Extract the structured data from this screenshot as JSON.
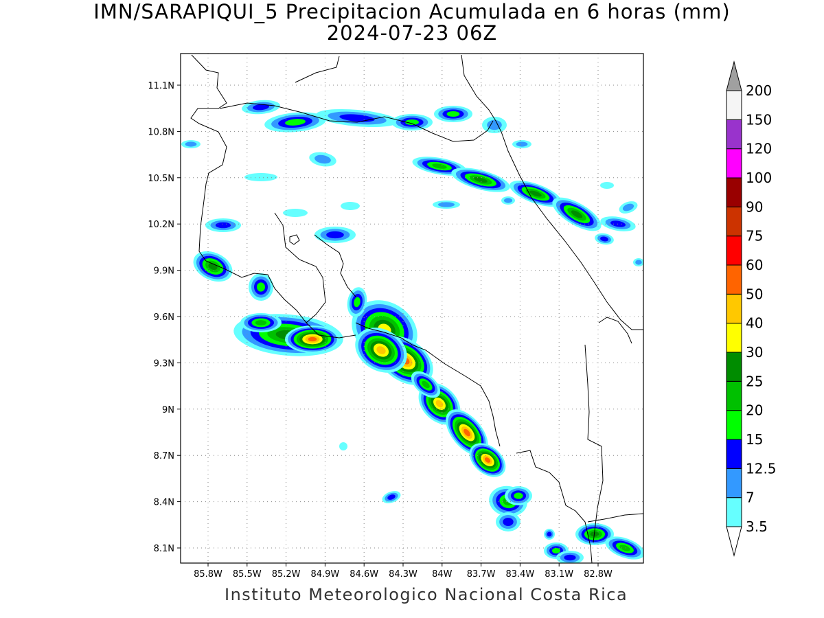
{
  "title": {
    "line1": "IMN/SARAPIQUI_5 Precipitacion Acumulada en 6 horas (mm)",
    "line2": "2024-07-23 06Z"
  },
  "footer": "Instituto Meteorologico Nacional Costa Rica",
  "map": {
    "lon_range": [
      -86.05,
      -83.05
    ],
    "lat_range": [
      8.0,
      11.3
    ],
    "lat_ticks": [
      {
        "value": 11.1,
        "label": "11.1N"
      },
      {
        "value": 10.8,
        "label": "10.8N"
      },
      {
        "value": 10.5,
        "label": "10.5N"
      },
      {
        "value": 10.2,
        "label": "10.2N"
      },
      {
        "value": 9.9,
        "label": "9.9N"
      },
      {
        "value": 9.6,
        "label": "9.6N"
      },
      {
        "value": 9.3,
        "label": "9.3N"
      },
      {
        "value": 9.0,
        "label": "9N"
      },
      {
        "value": 8.7,
        "label": "8.7N"
      },
      {
        "value": 8.4,
        "label": "8.4N"
      },
      {
        "value": 8.1,
        "label": "8.1N"
      }
    ],
    "lon_ticks": [
      {
        "value": -85.8,
        "label": "85.8W"
      },
      {
        "value": -85.5,
        "label": "85.5W"
      },
      {
        "value": -85.2,
        "label": "85.2W"
      },
      {
        "value": -84.9,
        "label": "84.9W"
      },
      {
        "value": -84.6,
        "label": "84.6W"
      },
      {
        "value": -84.3,
        "label": "84.3W"
      },
      {
        "value": -84.0,
        "label": "84W"
      },
      {
        "value": -83.7,
        "label": "83.7W"
      },
      {
        "value": -83.4,
        "label": "83.4W"
      },
      {
        "value": -83.1,
        "label": "83.1W"
      },
      {
        "value": -82.8,
        "label": "82.8W"
      }
    ]
  },
  "colorbar": {
    "labels": [
      "3.5",
      "7",
      "12.5",
      "15",
      "20",
      "25",
      "30",
      "40",
      "50",
      "60",
      "75",
      "90",
      "100",
      "120",
      "150",
      "200"
    ],
    "bins": [
      {
        "min": "3.5",
        "color": "#66ffff"
      },
      {
        "min": "7",
        "color": "#3399ff"
      },
      {
        "min": "12.5",
        "color": "#0000ff"
      },
      {
        "min": "15",
        "color": "#00ff00"
      },
      {
        "min": "20",
        "color": "#00c000"
      },
      {
        "min": "25",
        "color": "#008c00"
      },
      {
        "min": "30",
        "color": "#ffff00"
      },
      {
        "min": "40",
        "color": "#ffc800"
      },
      {
        "min": "50",
        "color": "#ff6400"
      },
      {
        "min": "60",
        "color": "#ff0000"
      },
      {
        "min": "75",
        "color": "#cc3300"
      },
      {
        "min": "90",
        "color": "#990000"
      },
      {
        "min": "100",
        "color": "#ff00ff"
      },
      {
        "min": "120",
        "color": "#9933cc"
      },
      {
        "min": "150",
        "color": "#f5f5f5"
      },
      {
        "min": "200",
        "color": "#a0a0a0"
      }
    ]
  }
}
